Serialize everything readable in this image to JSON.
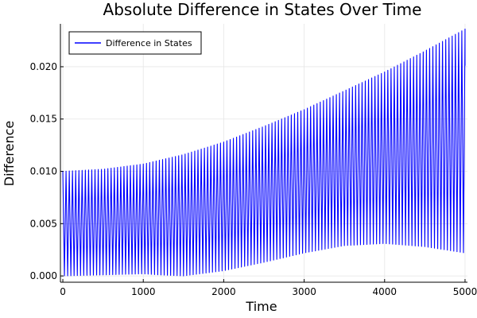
{
  "chart_data": {
    "type": "line",
    "title": "Absolute Difference in States Over Time",
    "xlabel": "Time",
    "ylabel": "Difference",
    "xlim": [
      -30,
      5030
    ],
    "ylim": [
      -0.0006,
      0.0241
    ],
    "xticks": [
      0,
      1000,
      2000,
      3000,
      4000,
      5000
    ],
    "xtick_labels": [
      "0",
      "1000",
      "2000",
      "3000",
      "4000",
      "5000"
    ],
    "yticks": [
      0.0,
      0.005,
      0.01,
      0.015,
      0.02
    ],
    "ytick_labels": [
      "0.000",
      "0.005",
      "0.010",
      "0.015",
      "0.020"
    ],
    "grid": true,
    "legend_position": "top-left",
    "series": [
      {
        "name": "Difference in States",
        "color": "#0000ff",
        "style": "rapid oscillation between lower and upper envelope",
        "oscillation_period": 40,
        "x_range": [
          0,
          5000
        ],
        "final_value": 0.0201,
        "upper_envelope": {
          "x": [
            0,
            500,
            1000,
            1500,
            2000,
            2500,
            3000,
            3500,
            4000,
            4500,
            5000
          ],
          "y": [
            0.01,
            0.0102,
            0.0107,
            0.0116,
            0.0128,
            0.0143,
            0.0159,
            0.0177,
            0.0195,
            0.0215,
            0.0236
          ]
        },
        "lower_envelope": {
          "x": [
            0,
            500,
            1000,
            1200,
            1500,
            2000,
            2500,
            3000,
            3500,
            4000,
            4500,
            5000
          ],
          "y": [
            0.0,
            0.0001,
            0.0002,
            0.0001,
            0.0,
            0.0005,
            0.0013,
            0.0022,
            0.0029,
            0.0031,
            0.0028,
            0.0022
          ]
        }
      }
    ]
  }
}
